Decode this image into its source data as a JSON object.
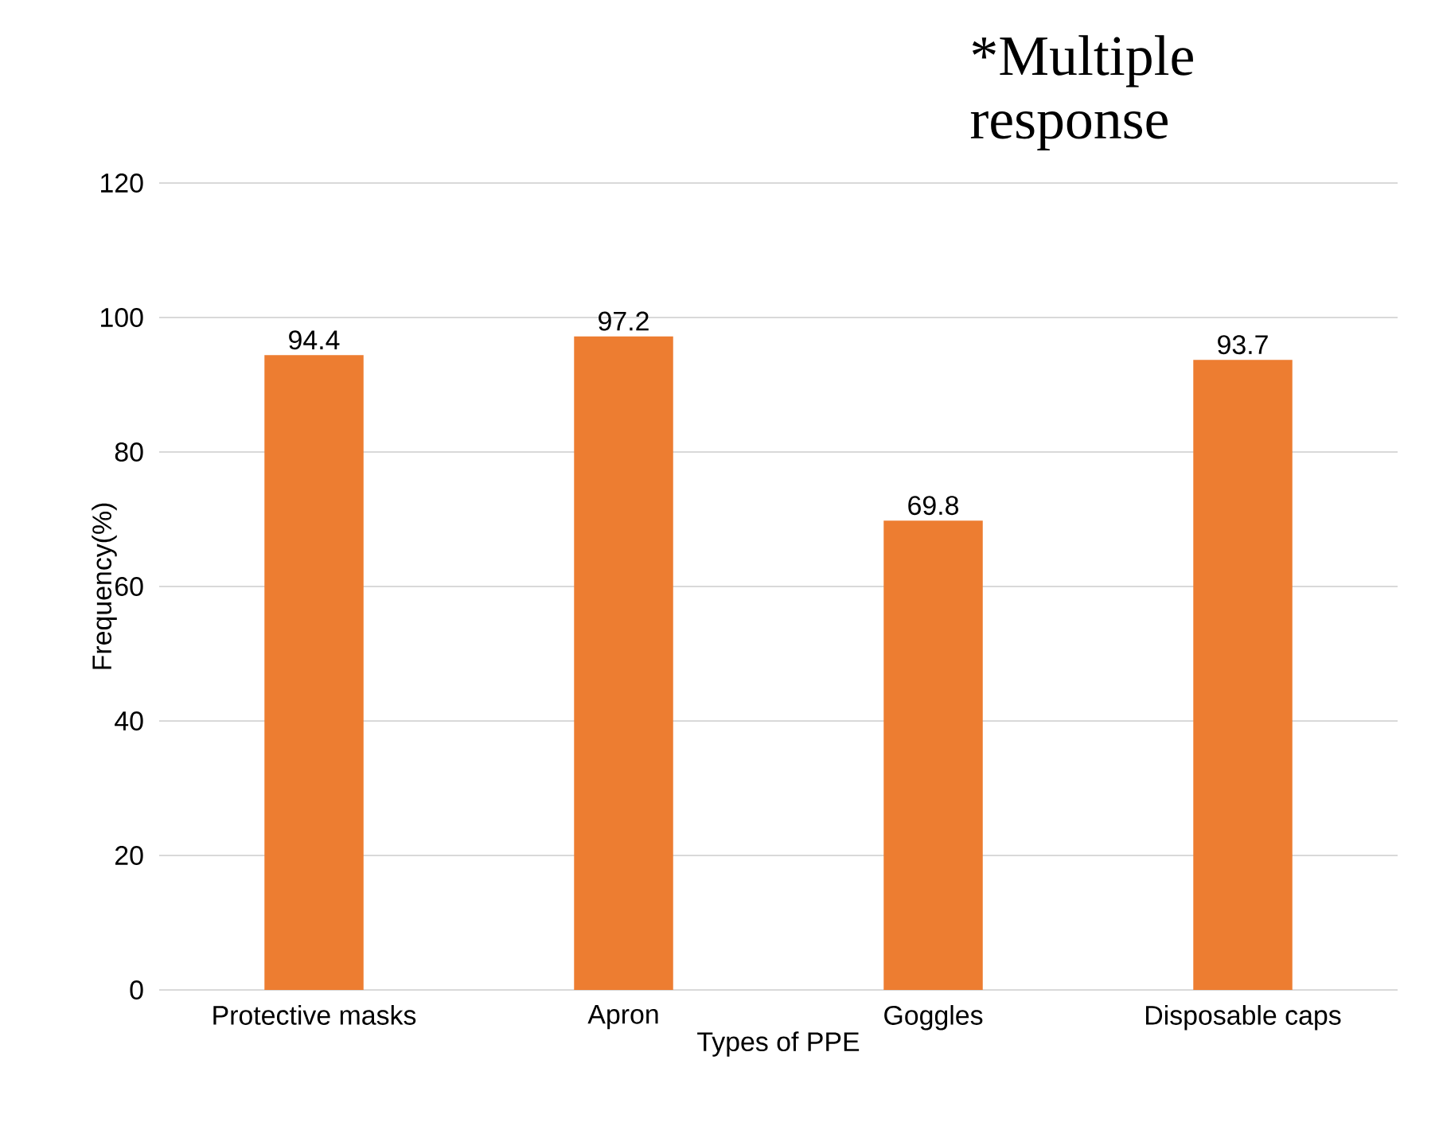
{
  "chart_data": {
    "type": "bar",
    "categories": [
      "Protective masks",
      "Apron",
      "Goggles",
      "Disposable caps"
    ],
    "values": [
      94.4,
      97.2,
      69.8,
      93.7
    ],
    "color": "#ed7d31",
    "xlabel": "Types of PPE",
    "ylabel": "Frequency(%)",
    "ylim": [
      0,
      120
    ],
    "yticks": [
      0,
      20,
      40,
      60,
      80,
      100,
      120
    ],
    "grid": "y",
    "data_labels": true,
    "annotations": [
      "*Multiple response"
    ]
  }
}
